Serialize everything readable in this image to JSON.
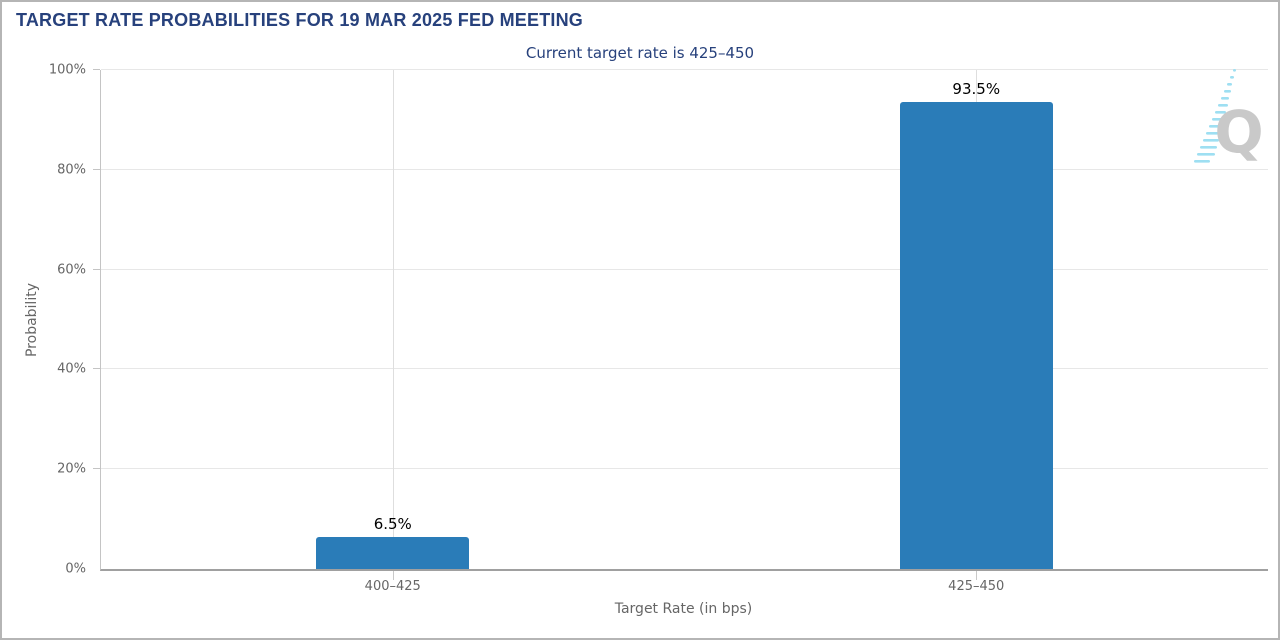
{
  "chart_data": {
    "type": "bar",
    "title": "TARGET RATE PROBABILITIES FOR 19 MAR 2025 FED MEETING",
    "subtitle": "Current target rate is 425–450",
    "categories": [
      "400–425",
      "425–450"
    ],
    "values": [
      6.5,
      93.5
    ],
    "bar_labels": [
      "6.5%",
      "93.5%"
    ],
    "xlabel": "Target Rate (in bps)",
    "ylabel": "Probability",
    "ylim": [
      0,
      100
    ],
    "yticks": [
      0,
      20,
      40,
      60,
      80,
      100
    ],
    "ytick_labels": [
      "0%",
      "20%",
      "40%",
      "60%",
      "80%",
      "100%"
    ],
    "grid": "horizontal gridlines at 20% steps plus faint vertical line at each category center",
    "legend_position": "none",
    "bar_color": "#2a7cb8",
    "title_color": "#27417c",
    "subtitle_color": "#27417c",
    "axis_label_color": "#666666",
    "value_label_color": "#000000"
  },
  "logo": {
    "letter": "Q",
    "letter_color": "#c9c9c9",
    "dash_color": "#9edff2"
  }
}
